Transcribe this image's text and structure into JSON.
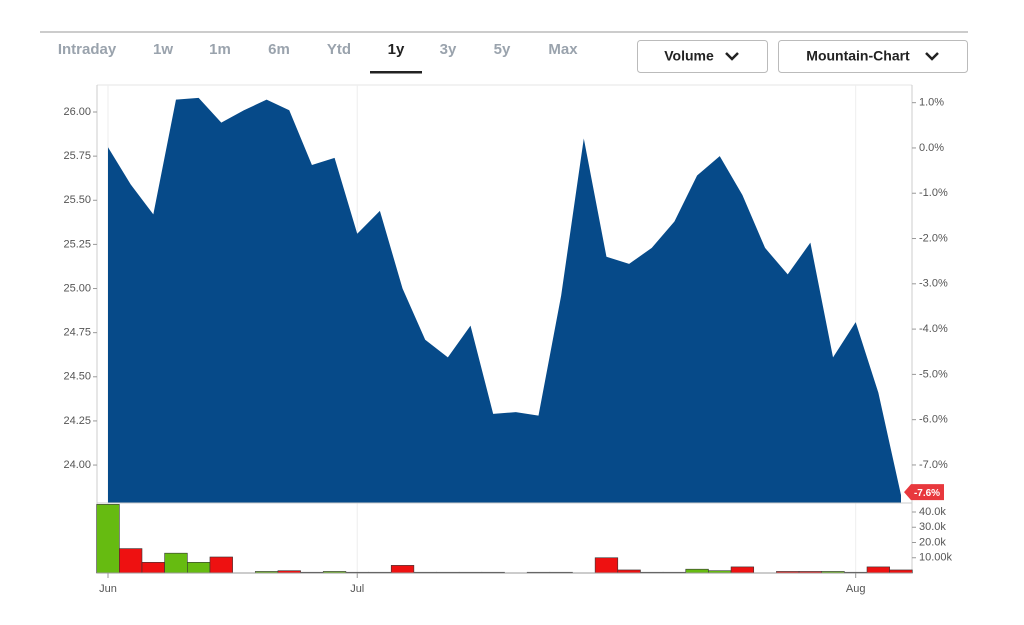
{
  "tabs": {
    "items": [
      "Intraday",
      "1w",
      "1m",
      "6m",
      "Ytd",
      "1y",
      "3y",
      "5y",
      "Max"
    ],
    "active": 5
  },
  "buttons": [
    "Volume",
    "Mountain-Chart"
  ],
  "chart_data": [
    {
      "type": "area",
      "color": "#064a89",
      "categories": [
        "Jun",
        null,
        null,
        null,
        null,
        null,
        null,
        null,
        null,
        null,
        null,
        "Jul",
        null,
        null,
        null,
        null,
        null,
        null,
        null,
        null,
        null,
        null,
        null,
        null,
        null,
        null,
        null,
        null,
        null,
        null,
        null,
        null,
        null,
        "Aug",
        null,
        null
      ],
      "values": [
        25.8,
        25.59,
        25.42,
        26.07,
        26.08,
        25.94,
        26.01,
        26.07,
        26.01,
        25.7,
        25.74,
        25.31,
        25.44,
        25.0,
        24.71,
        24.61,
        24.79,
        24.29,
        24.3,
        24.28,
        24.96,
        25.85,
        25.18,
        25.14,
        25.23,
        25.38,
        25.64,
        25.75,
        25.53,
        25.23,
        25.08,
        25.26,
        24.61,
        24.81,
        24.41,
        23.83
      ],
      "ylim": [
        23.785,
        26.153
      ],
      "yticks": [
        {
          "value": 24,
          "label": "24.00"
        },
        24.25,
        {
          "value": 24.5,
          "label": "24.50"
        },
        24.75,
        {
          "value": 25,
          "label": "25.00"
        },
        25.25,
        {
          "value": 25.5,
          "label": "25.50"
        },
        25.75,
        {
          "value": 26,
          "label": "26.00"
        }
      ],
      "y2lim": [
        -7.84,
        1.39
      ],
      "y2ticks": [
        {
          "value": 1,
          "label": "1.0%"
        },
        {
          "value": 0,
          "label": "0.0%"
        },
        {
          "value": -1,
          "label": "-1.0%"
        },
        {
          "value": -2,
          "label": "-2.0%"
        },
        {
          "value": -3,
          "label": "-3.0%"
        },
        {
          "value": -4,
          "label": "-4.0%"
        },
        {
          "value": -5,
          "label": "-5.0%"
        },
        {
          "value": -6,
          "label": "-6.0%"
        },
        {
          "value": -7,
          "label": "-7.0%"
        }
      ],
      "last_change": {
        "value": -7.6,
        "label": "-7.6%",
        "color": "#e8383d"
      }
    },
    {
      "type": "bar",
      "values": [
        45000,
        16000,
        7000,
        13000,
        7000,
        10500,
        0,
        1000,
        1500,
        500,
        1000,
        500,
        500,
        5000,
        500,
        500,
        500,
        500,
        0,
        500,
        500,
        0,
        10000,
        2000,
        500,
        500,
        2500,
        1500,
        4000,
        0,
        1000,
        1000,
        1000,
        500,
        4000,
        2000
      ],
      "colors": [
        "#66bb11",
        "#ee1111",
        "#ee1111",
        "#66bb11",
        "#66bb11",
        "#ee1111",
        "#ee1111",
        "#66bb11",
        "#ee1111",
        "#66bb11",
        "#66bb11",
        "#66bb11",
        "#ee1111",
        "#ee1111",
        "#ee1111",
        "#ee1111",
        "#ee1111",
        "#ee1111",
        "#66bb11",
        "#66bb11",
        "#66bb11",
        "#66bb11",
        "#ee1111",
        "#ee1111",
        "#66bb11",
        "#66bb11",
        "#66bb11",
        "#66bb11",
        "#ee1111",
        "#ee1111",
        "#ee1111",
        "#ee1111",
        "#66bb11",
        "#66bb11",
        "#ee1111",
        "#ee1111"
      ],
      "ylim": [
        0,
        45900
      ],
      "yticks": [
        {
          "value": 10000,
          "label": "10.00k"
        },
        {
          "value": 20000,
          "label": "20.0k"
        },
        {
          "value": 30000,
          "label": "30.0k"
        },
        {
          "value": 40000,
          "label": "40.0k"
        }
      ]
    }
  ]
}
